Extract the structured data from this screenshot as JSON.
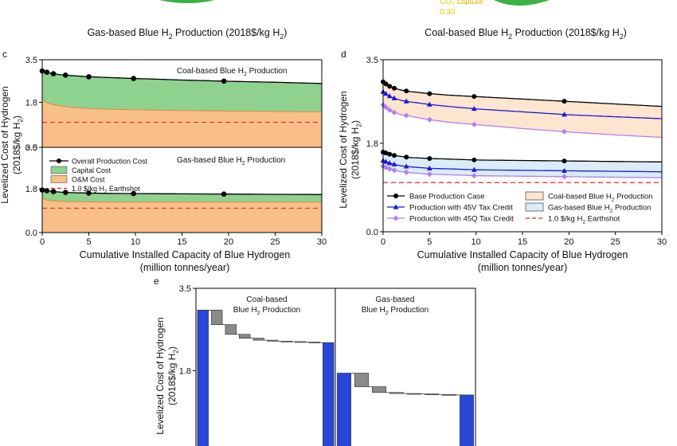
{
  "top_strip": {
    "pie_label": "CO₂ capture",
    "pie_value": "0.30",
    "colors": {
      "pie_green": "#3cb043",
      "pie_text": "#e6c800"
    }
  },
  "captions": {
    "left": {
      "pre": "Gas-based Blue H",
      "sub": "2",
      "post": " Production (2018$/kg H",
      "sub2": "2",
      "end": ")"
    },
    "right": {
      "pre": "Coal-based Blue H",
      "sub": "2",
      "post": " Production (2018$/kg H",
      "sub2": "2",
      "end": ")"
    }
  },
  "panel_labels": {
    "c": "c",
    "d": "d",
    "e": "e"
  },
  "shared": {
    "xlabel": "Cumulative Installed Capacity of Blue Hydrogen",
    "xlabel2": "(million tonnes/year)",
    "ylabel": "Levelized Cost of Hydrogen",
    "ylabel2_pre": "(2018$/kg H",
    "ylabel2_sub": "2",
    "ylabel2_end": ")",
    "xticks": [
      "0",
      "5",
      "10",
      "15",
      "20",
      "25",
      "30"
    ],
    "yticks_full": [
      "0.0",
      "1.8",
      "3.5"
    ]
  },
  "colors": {
    "capital": "#8fd18f",
    "om": "#f9bf8a",
    "earthshot": "#e8252a",
    "coal_band": "#fde5cf",
    "gas_band": "#d9ecf7",
    "base": "#000000",
    "v45": "#1a1ad6",
    "q45": "#b27ff0",
    "bar_blue": "#2847d8",
    "bar_gray": "#8a8a8a"
  },
  "chart_data": [
    {
      "panel": "c",
      "type": "area",
      "title": "",
      "subplots": [
        {
          "name": "coal",
          "annotation": {
            "pre": "Coal-based Blue H",
            "sub": "2",
            "post": " Production"
          },
          "ylim": [
            0,
            3.5
          ],
          "yticks": [
            "0.0",
            "1.8",
            "3.5"
          ],
          "x": [
            0,
            0.5,
            1,
            2,
            3,
            5,
            7,
            10,
            15,
            20,
            25,
            30
          ],
          "overall": [
            3.05,
            3.0,
            2.95,
            2.9,
            2.87,
            2.82,
            2.79,
            2.75,
            2.69,
            2.64,
            2.6,
            2.55
          ],
          "om": [
            1.9,
            1.78,
            1.72,
            1.65,
            1.6,
            1.55,
            1.52,
            1.5,
            1.47,
            1.45,
            1.43,
            1.42
          ],
          "marker_x": [
            0,
            0.5,
            1.2,
            2.5,
            5,
            9.8,
            19.5
          ],
          "earthshot": 1.0
        },
        {
          "name": "gas",
          "annotation": {
            "pre": "Gas-based Blue H",
            "sub": "2",
            "post": " Production"
          },
          "ylim": [
            0,
            3.5
          ],
          "yticks": [
            "0.0",
            "1.8",
            "3.5"
          ],
          "x": [
            0,
            0.5,
            1,
            2,
            3,
            5,
            7,
            10,
            15,
            20,
            25,
            30
          ],
          "overall": [
            1.75,
            1.72,
            1.69,
            1.66,
            1.64,
            1.62,
            1.61,
            1.6,
            1.59,
            1.58,
            1.57,
            1.56
          ],
          "om": [
            1.42,
            1.33,
            1.3,
            1.28,
            1.27,
            1.26,
            1.25,
            1.25,
            1.25,
            1.25,
            1.25,
            1.25
          ],
          "marker_x": [
            0,
            0.5,
            1.2,
            2.5,
            5,
            9.8,
            19.5
          ],
          "earthshot": 1.0
        }
      ],
      "legend": [
        {
          "key": "overall",
          "label": "Overall Production Cost"
        },
        {
          "key": "capital",
          "label": "Capital Cost"
        },
        {
          "key": "om",
          "label": "O&M Cost"
        },
        {
          "key": "earthshot",
          "pre": "1.0 $/kg H",
          "sub": "2",
          "post": " Earthshot"
        }
      ]
    },
    {
      "panel": "d",
      "type": "line",
      "ylim": [
        0,
        3.5
      ],
      "xlim": [
        0,
        30
      ],
      "x": [
        0,
        0.5,
        1,
        2,
        3,
        5,
        7,
        10,
        15,
        20,
        25,
        30
      ],
      "marker_x": [
        0,
        0.3,
        0.7,
        1.2,
        2.5,
        5,
        9.8,
        19.5
      ],
      "series": [
        {
          "name": "Base Production Case (coal)",
          "key": "base",
          "values": [
            3.05,
            2.98,
            2.93,
            2.88,
            2.85,
            2.81,
            2.78,
            2.75,
            2.7,
            2.65,
            2.6,
            2.55
          ]
        },
        {
          "name": "Production with 45V Tax Credit (coal)",
          "key": "v45",
          "values": [
            2.85,
            2.78,
            2.73,
            2.67,
            2.64,
            2.59,
            2.55,
            2.5,
            2.44,
            2.38,
            2.34,
            2.3
          ]
        },
        {
          "name": "Production with 45Q Tax Credit (coal)",
          "key": "q45",
          "values": [
            2.58,
            2.5,
            2.44,
            2.38,
            2.35,
            2.28,
            2.23,
            2.18,
            2.1,
            2.03,
            1.97,
            1.92
          ]
        },
        {
          "name": "Base Production Case (gas)",
          "key": "base",
          "values": [
            1.62,
            1.59,
            1.56,
            1.53,
            1.51,
            1.49,
            1.48,
            1.46,
            1.45,
            1.44,
            1.43,
            1.42
          ]
        },
        {
          "name": "Production with 45V Tax Credit (gas)",
          "key": "v45",
          "values": [
            1.45,
            1.41,
            1.38,
            1.34,
            1.32,
            1.29,
            1.28,
            1.26,
            1.25,
            1.24,
            1.23,
            1.22
          ]
        },
        {
          "name": "Production with 45Q Tax Credit (gas)",
          "key": "q45",
          "values": [
            1.33,
            1.29,
            1.26,
            1.22,
            1.2,
            1.17,
            1.16,
            1.14,
            1.13,
            1.12,
            1.11,
            1.1
          ]
        }
      ],
      "earthshot": 1.0,
      "legend": [
        {
          "key": "base",
          "label": "Base Production Case"
        },
        {
          "key": "v45",
          "label": "Production with 45V Tax Credit"
        },
        {
          "key": "q45",
          "label": "Production with 45Q Tax Credit"
        },
        {
          "key": "coal_band",
          "pre": "Coal-based Blue H",
          "sub": "2",
          "post": " Production"
        },
        {
          "key": "gas_band",
          "pre": "Gas-based Blue H",
          "sub": "2",
          "post": " Production"
        },
        {
          "key": "earthshot",
          "pre": "1.0 $/kg H",
          "sub": "2",
          "post": " Earthshot"
        }
      ]
    },
    {
      "panel": "e",
      "type": "bar",
      "subtype": "waterfall",
      "ylim": [
        0,
        3.5
      ],
      "yticks": [
        "1.8",
        "3.5"
      ],
      "groups": [
        {
          "annotation": {
            "line1": "Coal-based",
            "pre": "Blue H",
            "sub": "2",
            "post": " Production"
          },
          "bars": [
            {
              "kind": "total",
              "from": 0,
              "to": 3.05
            },
            {
              "kind": "step",
              "from": 3.05,
              "to": 2.75
            },
            {
              "kind": "step",
              "from": 2.75,
              "to": 2.55
            },
            {
              "kind": "step",
              "from": 2.55,
              "to": 2.47
            },
            {
              "kind": "step",
              "from": 2.47,
              "to": 2.43
            },
            {
              "kind": "step",
              "from": 2.43,
              "to": 2.41
            },
            {
              "kind": "step",
              "from": 2.41,
              "to": 2.4
            },
            {
              "kind": "step",
              "from": 2.4,
              "to": 2.39
            },
            {
              "kind": "step",
              "from": 2.39,
              "to": 2.38
            },
            {
              "kind": "total",
              "from": 0,
              "to": 2.38
            }
          ]
        },
        {
          "annotation": {
            "line1": "Gas-based",
            "pre": "Blue H",
            "sub": "2",
            "post": " Production"
          },
          "bars": [
            {
              "kind": "total",
              "from": 0,
              "to": 1.75
            },
            {
              "kind": "step",
              "from": 1.75,
              "to": 1.47
            },
            {
              "kind": "step",
              "from": 1.47,
              "to": 1.35
            },
            {
              "kind": "step",
              "from": 1.35,
              "to": 1.33
            },
            {
              "kind": "step",
              "from": 1.33,
              "to": 1.32
            },
            {
              "kind": "step",
              "from": 1.32,
              "to": 1.31
            },
            {
              "kind": "step",
              "from": 1.31,
              "to": 1.3
            },
            {
              "kind": "total",
              "from": 0,
              "to": 1.3
            }
          ]
        }
      ]
    }
  ]
}
